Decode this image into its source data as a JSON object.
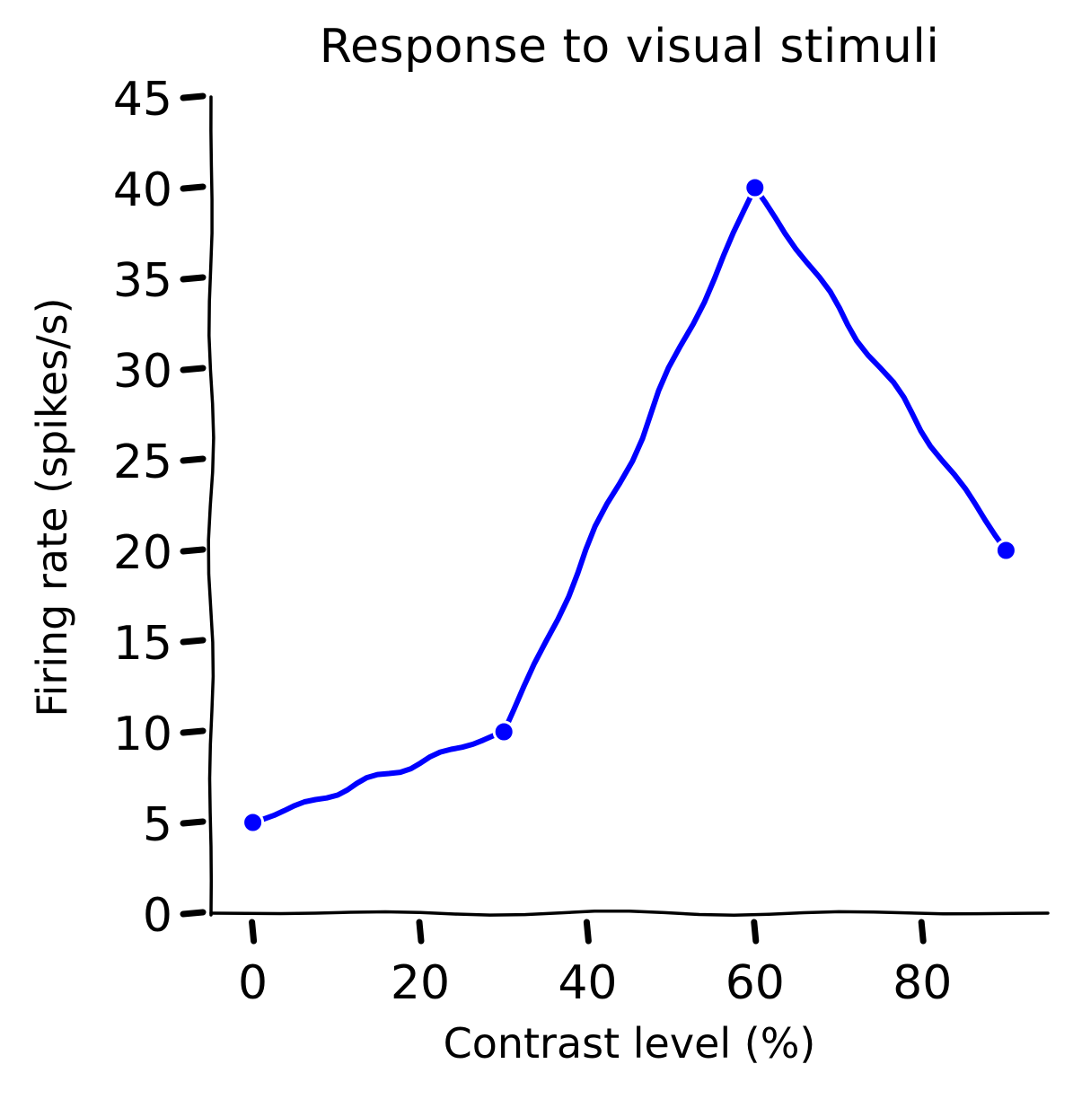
{
  "chart_data": {
    "type": "line",
    "title": "Response to visual stimuli",
    "xlabel": "Contrast level (%)",
    "ylabel": "Firing rate (spikes/s)",
    "x": [
      0,
      30,
      60,
      90
    ],
    "series": [
      {
        "values": [
          5,
          10,
          40,
          20
        ],
        "color": "#0000ff"
      }
    ],
    "xlim": [
      -5,
      95
    ],
    "ylim": [
      0,
      45
    ],
    "xticks": [
      0,
      20,
      40,
      60,
      80
    ],
    "yticks": [
      0,
      5,
      10,
      15,
      20,
      25,
      30,
      35,
      40,
      45
    ],
    "grid": false,
    "marker": "circle",
    "style": "hand-drawn"
  }
}
